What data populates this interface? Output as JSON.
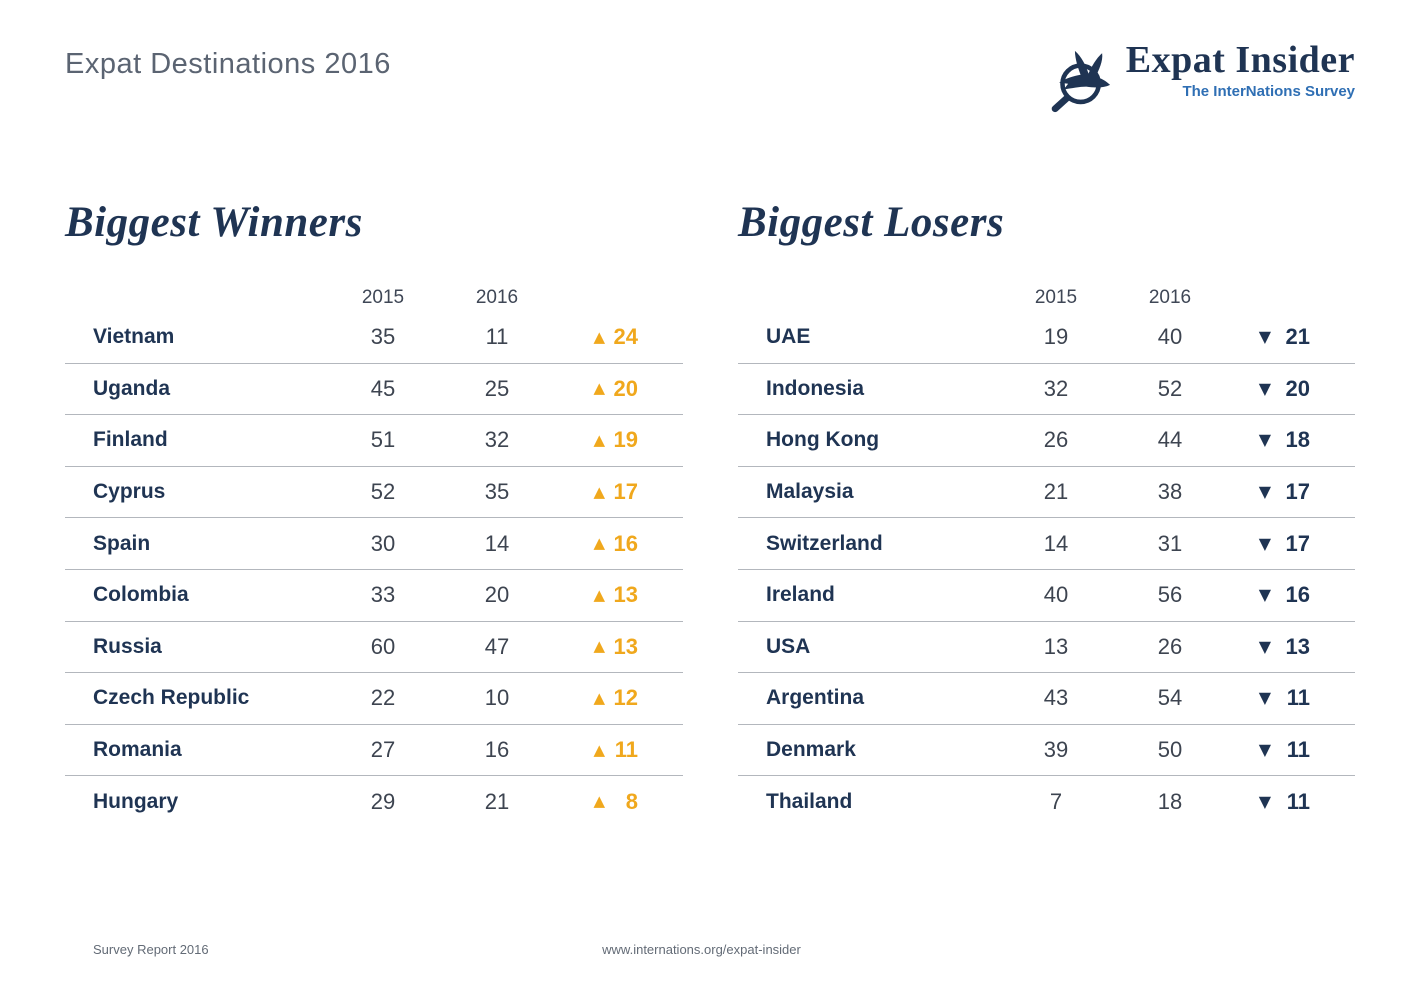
{
  "page": {
    "title": "Expat Destinations 2016",
    "footer": {
      "left": "Survey Report 2016",
      "center": "www.internations.org/expat-insider"
    }
  },
  "logo": {
    "brand": "Expat Insider",
    "tagline": "The InterNations Survey",
    "icon": "magnifier-bird-icon"
  },
  "colors": {
    "navy": "#1f3453",
    "amber": "#f0a81d",
    "title_gray": "#5b6472",
    "number_gray": "#3d4450",
    "divider_gray": "#b3b7bd",
    "tagline_blue": "#2f6fb4"
  },
  "tables": [
    {
      "id": "winners",
      "title": "Biggest Winners",
      "columns": [
        "2015",
        "2016"
      ],
      "direction": "up",
      "arrow": "▲",
      "rows": [
        {
          "country": "Vietnam",
          "y2015": 35,
          "y2016": 11,
          "change": 24
        },
        {
          "country": "Uganda",
          "y2015": 45,
          "y2016": 25,
          "change": 20
        },
        {
          "country": "Finland",
          "y2015": 51,
          "y2016": 32,
          "change": 19
        },
        {
          "country": "Cyprus",
          "y2015": 52,
          "y2016": 35,
          "change": 17
        },
        {
          "country": "Spain",
          "y2015": 30,
          "y2016": 14,
          "change": 16
        },
        {
          "country": "Colombia",
          "y2015": 33,
          "y2016": 20,
          "change": 13
        },
        {
          "country": "Russia",
          "y2015": 60,
          "y2016": 47,
          "change": 13
        },
        {
          "country": "Czech Republic",
          "y2015": 22,
          "y2016": 10,
          "change": 12
        },
        {
          "country": "Romania",
          "y2015": 27,
          "y2016": 16,
          "change": 11
        },
        {
          "country": "Hungary",
          "y2015": 29,
          "y2016": 21,
          "change": 8
        }
      ]
    },
    {
      "id": "losers",
      "title": "Biggest Losers",
      "columns": [
        "2015",
        "2016"
      ],
      "direction": "down",
      "arrow": "▼",
      "rows": [
        {
          "country": "UAE",
          "y2015": 19,
          "y2016": 40,
          "change": 21
        },
        {
          "country": "Indonesia",
          "y2015": 32,
          "y2016": 52,
          "change": 20
        },
        {
          "country": "Hong Kong",
          "y2015": 26,
          "y2016": 44,
          "change": 18
        },
        {
          "country": "Malaysia",
          "y2015": 21,
          "y2016": 38,
          "change": 17
        },
        {
          "country": "Switzerland",
          "y2015": 14,
          "y2016": 31,
          "change": 17
        },
        {
          "country": "Ireland",
          "y2015": 40,
          "y2016": 56,
          "change": 16
        },
        {
          "country": "USA",
          "y2015": 13,
          "y2016": 26,
          "change": 13
        },
        {
          "country": "Argentina",
          "y2015": 43,
          "y2016": 54,
          "change": 11
        },
        {
          "country": "Denmark",
          "y2015": 39,
          "y2016": 50,
          "change": 11
        },
        {
          "country": "Thailand",
          "y2015": 7,
          "y2016": 18,
          "change": 11
        }
      ]
    }
  ]
}
